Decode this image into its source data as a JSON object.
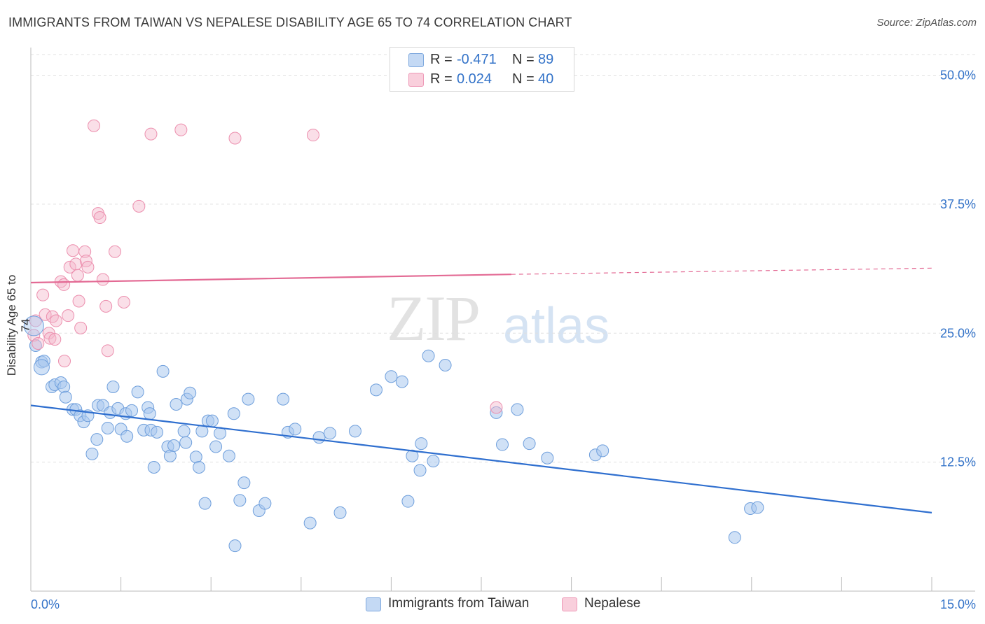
{
  "title": "IMMIGRANTS FROM TAIWAN VS NEPALESE DISABILITY AGE 65 TO 74 CORRELATION CHART",
  "source": "Source: ZipAtlas.com",
  "watermark": {
    "zip": "ZIP",
    "atlas": "atlas"
  },
  "legend_top": {
    "rows": [
      {
        "r_label": "R =",
        "r_value": "-0.471",
        "n_label": "N =",
        "n_value": "89"
      },
      {
        "r_label": "R =",
        "r_value": "0.024",
        "n_label": "N =",
        "n_value": "40"
      }
    ]
  },
  "legend_bottom": [
    "Immigrants from Taiwan",
    "Nepalese"
  ],
  "colors": {
    "taiwan_fill": "#a9c8ef",
    "taiwan_stroke": "#6f9fdc",
    "taiwan_line": "#2f6fcf",
    "nepalese_fill": "#f5b9cb",
    "nepalese_stroke": "#ec8fae",
    "nepalese_line": "#e36a94",
    "tick_label": "#3574c9",
    "grid": "#e0e0e0"
  },
  "chart_data": {
    "type": "scatter",
    "title": "IMMIGRANTS FROM TAIWAN VS NEPALESE DISABILITY AGE 65 TO 74 CORRELATION CHART",
    "xlabel": "",
    "ylabel": "Disability Age 65 to 74",
    "xlim": [
      0,
      15
    ],
    "ylim": [
      0,
      52
    ],
    "x_tick_labels": [
      "0.0%",
      "15.0%"
    ],
    "y_ticks": [
      12.5,
      25.0,
      37.5,
      50.0
    ],
    "y_tick_labels": [
      "12.5%",
      "25.0%",
      "37.5%",
      "50.0%"
    ],
    "grid": true,
    "legend": "bottom",
    "series": [
      {
        "name": "Immigrants from Taiwan",
        "trend": {
          "x": [
            0,
            15
          ],
          "y": [
            18.0,
            7.6
          ]
        },
        "points": [
          [
            0.08,
            23.8
          ],
          [
            0.18,
            22.2
          ],
          [
            0.22,
            22.3
          ],
          [
            0.35,
            19.8
          ],
          [
            0.4,
            20.0
          ],
          [
            0.5,
            20.2
          ],
          [
            0.55,
            19.8
          ],
          [
            0.58,
            18.8
          ],
          [
            0.7,
            17.6
          ],
          [
            0.75,
            17.6
          ],
          [
            0.82,
            17.0
          ],
          [
            0.88,
            16.4
          ],
          [
            0.95,
            17.0
          ],
          [
            1.02,
            13.3
          ],
          [
            1.1,
            14.7
          ],
          [
            1.12,
            18.0
          ],
          [
            1.2,
            18.0
          ],
          [
            1.28,
            15.8
          ],
          [
            1.32,
            17.3
          ],
          [
            1.37,
            19.8
          ],
          [
            1.45,
            17.7
          ],
          [
            1.5,
            15.7
          ],
          [
            1.58,
            17.2
          ],
          [
            1.6,
            15.0
          ],
          [
            1.68,
            17.5
          ],
          [
            1.78,
            19.3
          ],
          [
            1.88,
            15.6
          ],
          [
            1.95,
            17.8
          ],
          [
            1.98,
            17.2
          ],
          [
            2.0,
            15.6
          ],
          [
            2.05,
            12.0
          ],
          [
            2.1,
            15.4
          ],
          [
            2.2,
            21.3
          ],
          [
            2.28,
            14.0
          ],
          [
            2.32,
            13.1
          ],
          [
            2.38,
            14.1
          ],
          [
            2.42,
            18.1
          ],
          [
            2.55,
            15.5
          ],
          [
            2.58,
            14.4
          ],
          [
            2.6,
            18.6
          ],
          [
            2.65,
            19.2
          ],
          [
            2.75,
            13.0
          ],
          [
            2.8,
            12.0
          ],
          [
            2.85,
            15.5
          ],
          [
            2.9,
            8.5
          ],
          [
            2.95,
            16.5
          ],
          [
            3.02,
            16.5
          ],
          [
            3.08,
            14.0
          ],
          [
            3.15,
            15.3
          ],
          [
            3.3,
            13.1
          ],
          [
            3.38,
            17.2
          ],
          [
            3.4,
            4.4
          ],
          [
            3.48,
            8.8
          ],
          [
            3.55,
            10.5
          ],
          [
            3.62,
            18.6
          ],
          [
            3.8,
            7.8
          ],
          [
            3.9,
            8.5
          ],
          [
            4.2,
            18.6
          ],
          [
            4.28,
            15.4
          ],
          [
            4.4,
            15.7
          ],
          [
            4.65,
            6.6
          ],
          [
            4.8,
            14.9
          ],
          [
            4.98,
            15.3
          ],
          [
            5.15,
            7.6
          ],
          [
            5.4,
            15.5
          ],
          [
            5.75,
            19.5
          ],
          [
            6.0,
            20.8
          ],
          [
            6.18,
            20.3
          ],
          [
            6.28,
            8.7
          ],
          [
            6.35,
            13.1
          ],
          [
            6.48,
            11.7
          ],
          [
            6.5,
            14.3
          ],
          [
            6.62,
            22.8
          ],
          [
            6.7,
            12.6
          ],
          [
            6.9,
            21.9
          ],
          [
            7.75,
            17.3
          ],
          [
            7.85,
            14.2
          ],
          [
            8.1,
            17.6
          ],
          [
            8.3,
            14.3
          ],
          [
            8.6,
            12.9
          ],
          [
            9.4,
            13.2
          ],
          [
            9.52,
            13.6
          ],
          [
            11.72,
            5.2
          ],
          [
            11.98,
            8.0
          ],
          [
            12.1,
            8.1
          ]
        ]
      },
      {
        "name": "Nepalese",
        "trend": {
          "x": [
            0,
            8.0,
            15
          ],
          "y": [
            29.9,
            30.7,
            31.3
          ],
          "solid_until": 8.0
        },
        "points": [
          [
            0.05,
            24.8
          ],
          [
            0.08,
            26.2
          ],
          [
            0.12,
            24.0
          ],
          [
            0.2,
            28.7
          ],
          [
            0.24,
            26.8
          ],
          [
            0.3,
            25.0
          ],
          [
            0.32,
            24.5
          ],
          [
            0.36,
            26.6
          ],
          [
            0.4,
            24.4
          ],
          [
            0.42,
            26.2
          ],
          [
            0.5,
            30.0
          ],
          [
            0.55,
            29.7
          ],
          [
            0.56,
            22.3
          ],
          [
            0.62,
            26.7
          ],
          [
            0.65,
            31.4
          ],
          [
            0.7,
            33.0
          ],
          [
            0.75,
            31.7
          ],
          [
            0.78,
            30.6
          ],
          [
            0.8,
            28.1
          ],
          [
            0.83,
            25.5
          ],
          [
            0.9,
            32.9
          ],
          [
            0.92,
            32.0
          ],
          [
            0.95,
            31.4
          ],
          [
            1.05,
            45.1
          ],
          [
            1.12,
            36.6
          ],
          [
            1.15,
            36.2
          ],
          [
            1.2,
            30.2
          ],
          [
            1.25,
            27.6
          ],
          [
            1.28,
            23.3
          ],
          [
            1.4,
            32.9
          ],
          [
            1.55,
            28.0
          ],
          [
            1.8,
            37.3
          ],
          [
            2.0,
            44.3
          ],
          [
            2.5,
            44.7
          ],
          [
            3.4,
            43.9
          ],
          [
            4.7,
            44.2
          ],
          [
            7.75,
            17.8
          ]
        ]
      }
    ]
  }
}
